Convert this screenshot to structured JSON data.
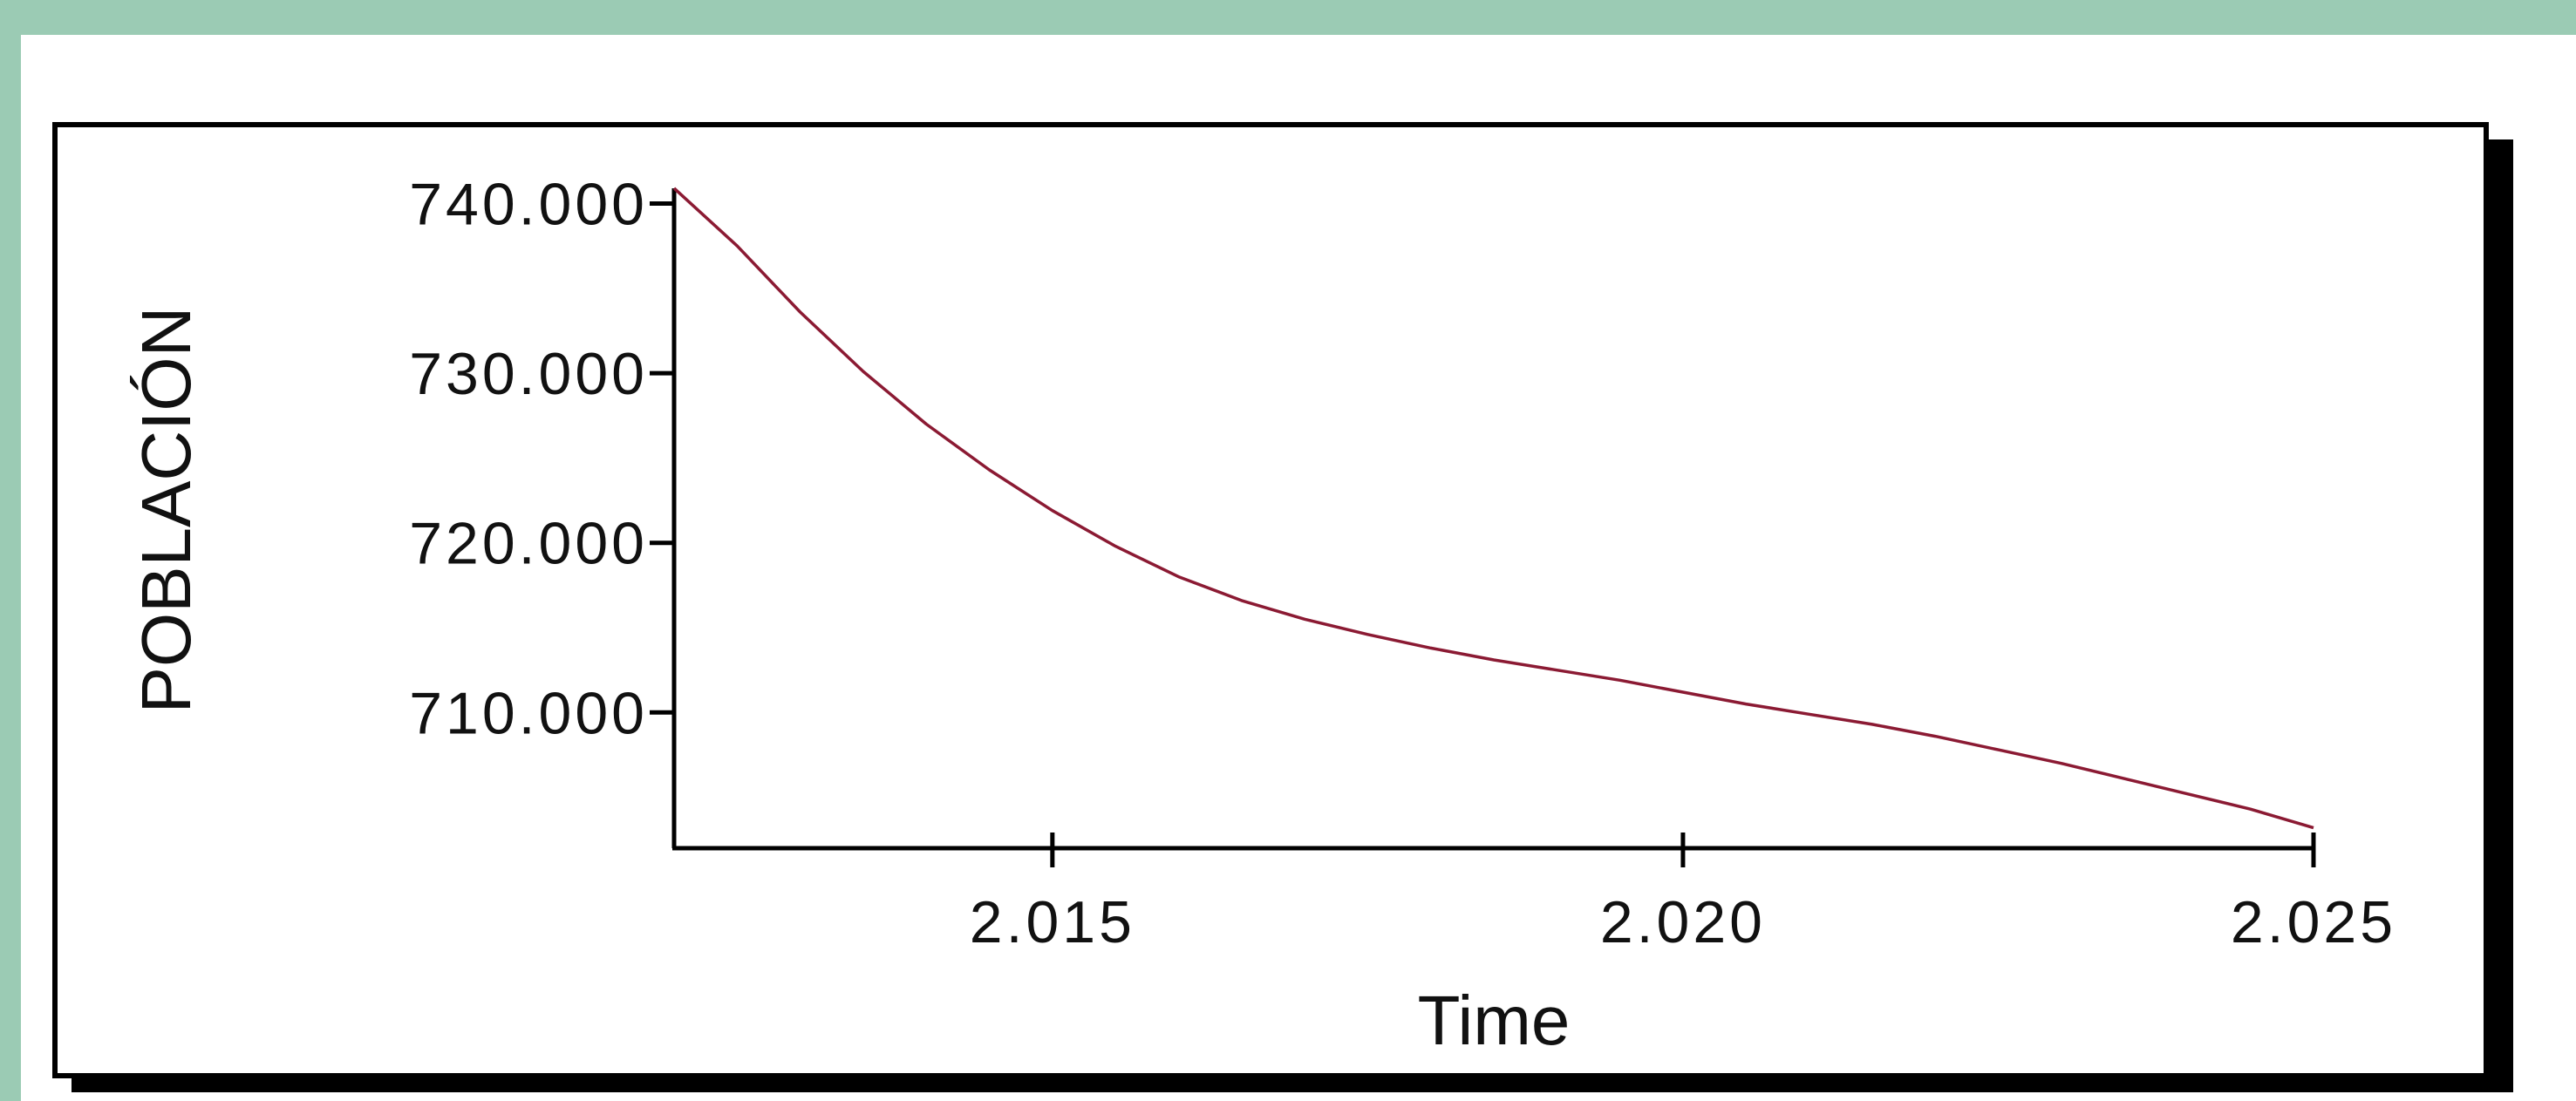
{
  "chart_data": {
    "type": "line",
    "title": "",
    "xlabel": "Time",
    "ylabel": "POBLACIÓN",
    "xlim": [
      2012,
      2025
    ],
    "ylim": [
      702000,
      741000
    ],
    "x_ticks": [
      2015,
      2020,
      2025
    ],
    "x_tick_labels": [
      "2.015",
      "2.020",
      "2.025"
    ],
    "y_ticks": [
      710000,
      720000,
      730000,
      740000
    ],
    "y_tick_labels": [
      "710.000",
      "720.000",
      "730.000",
      "740.000"
    ],
    "grid": false,
    "series": [
      {
        "color": "#8b1a33",
        "x": [
          2012,
          2012.5,
          2013,
          2013.5,
          2014,
          2014.5,
          2015,
          2015.5,
          2016,
          2016.5,
          2017,
          2017.5,
          2018,
          2018.5,
          2019,
          2019.5,
          2020,
          2020.5,
          2021,
          2021.5,
          2022,
          2022.5,
          2023,
          2023.5,
          2024,
          2024.5,
          2025
        ],
        "values": [
          740900,
          737500,
          733600,
          730100,
          727000,
          724300,
          721900,
          719800,
          718000,
          716600,
          715500,
          714600,
          713800,
          713100,
          712500,
          711900,
          711200,
          710500,
          709900,
          709300,
          708600,
          707800,
          707000,
          706100,
          705200,
          704300,
          703200
        ]
      }
    ]
  }
}
